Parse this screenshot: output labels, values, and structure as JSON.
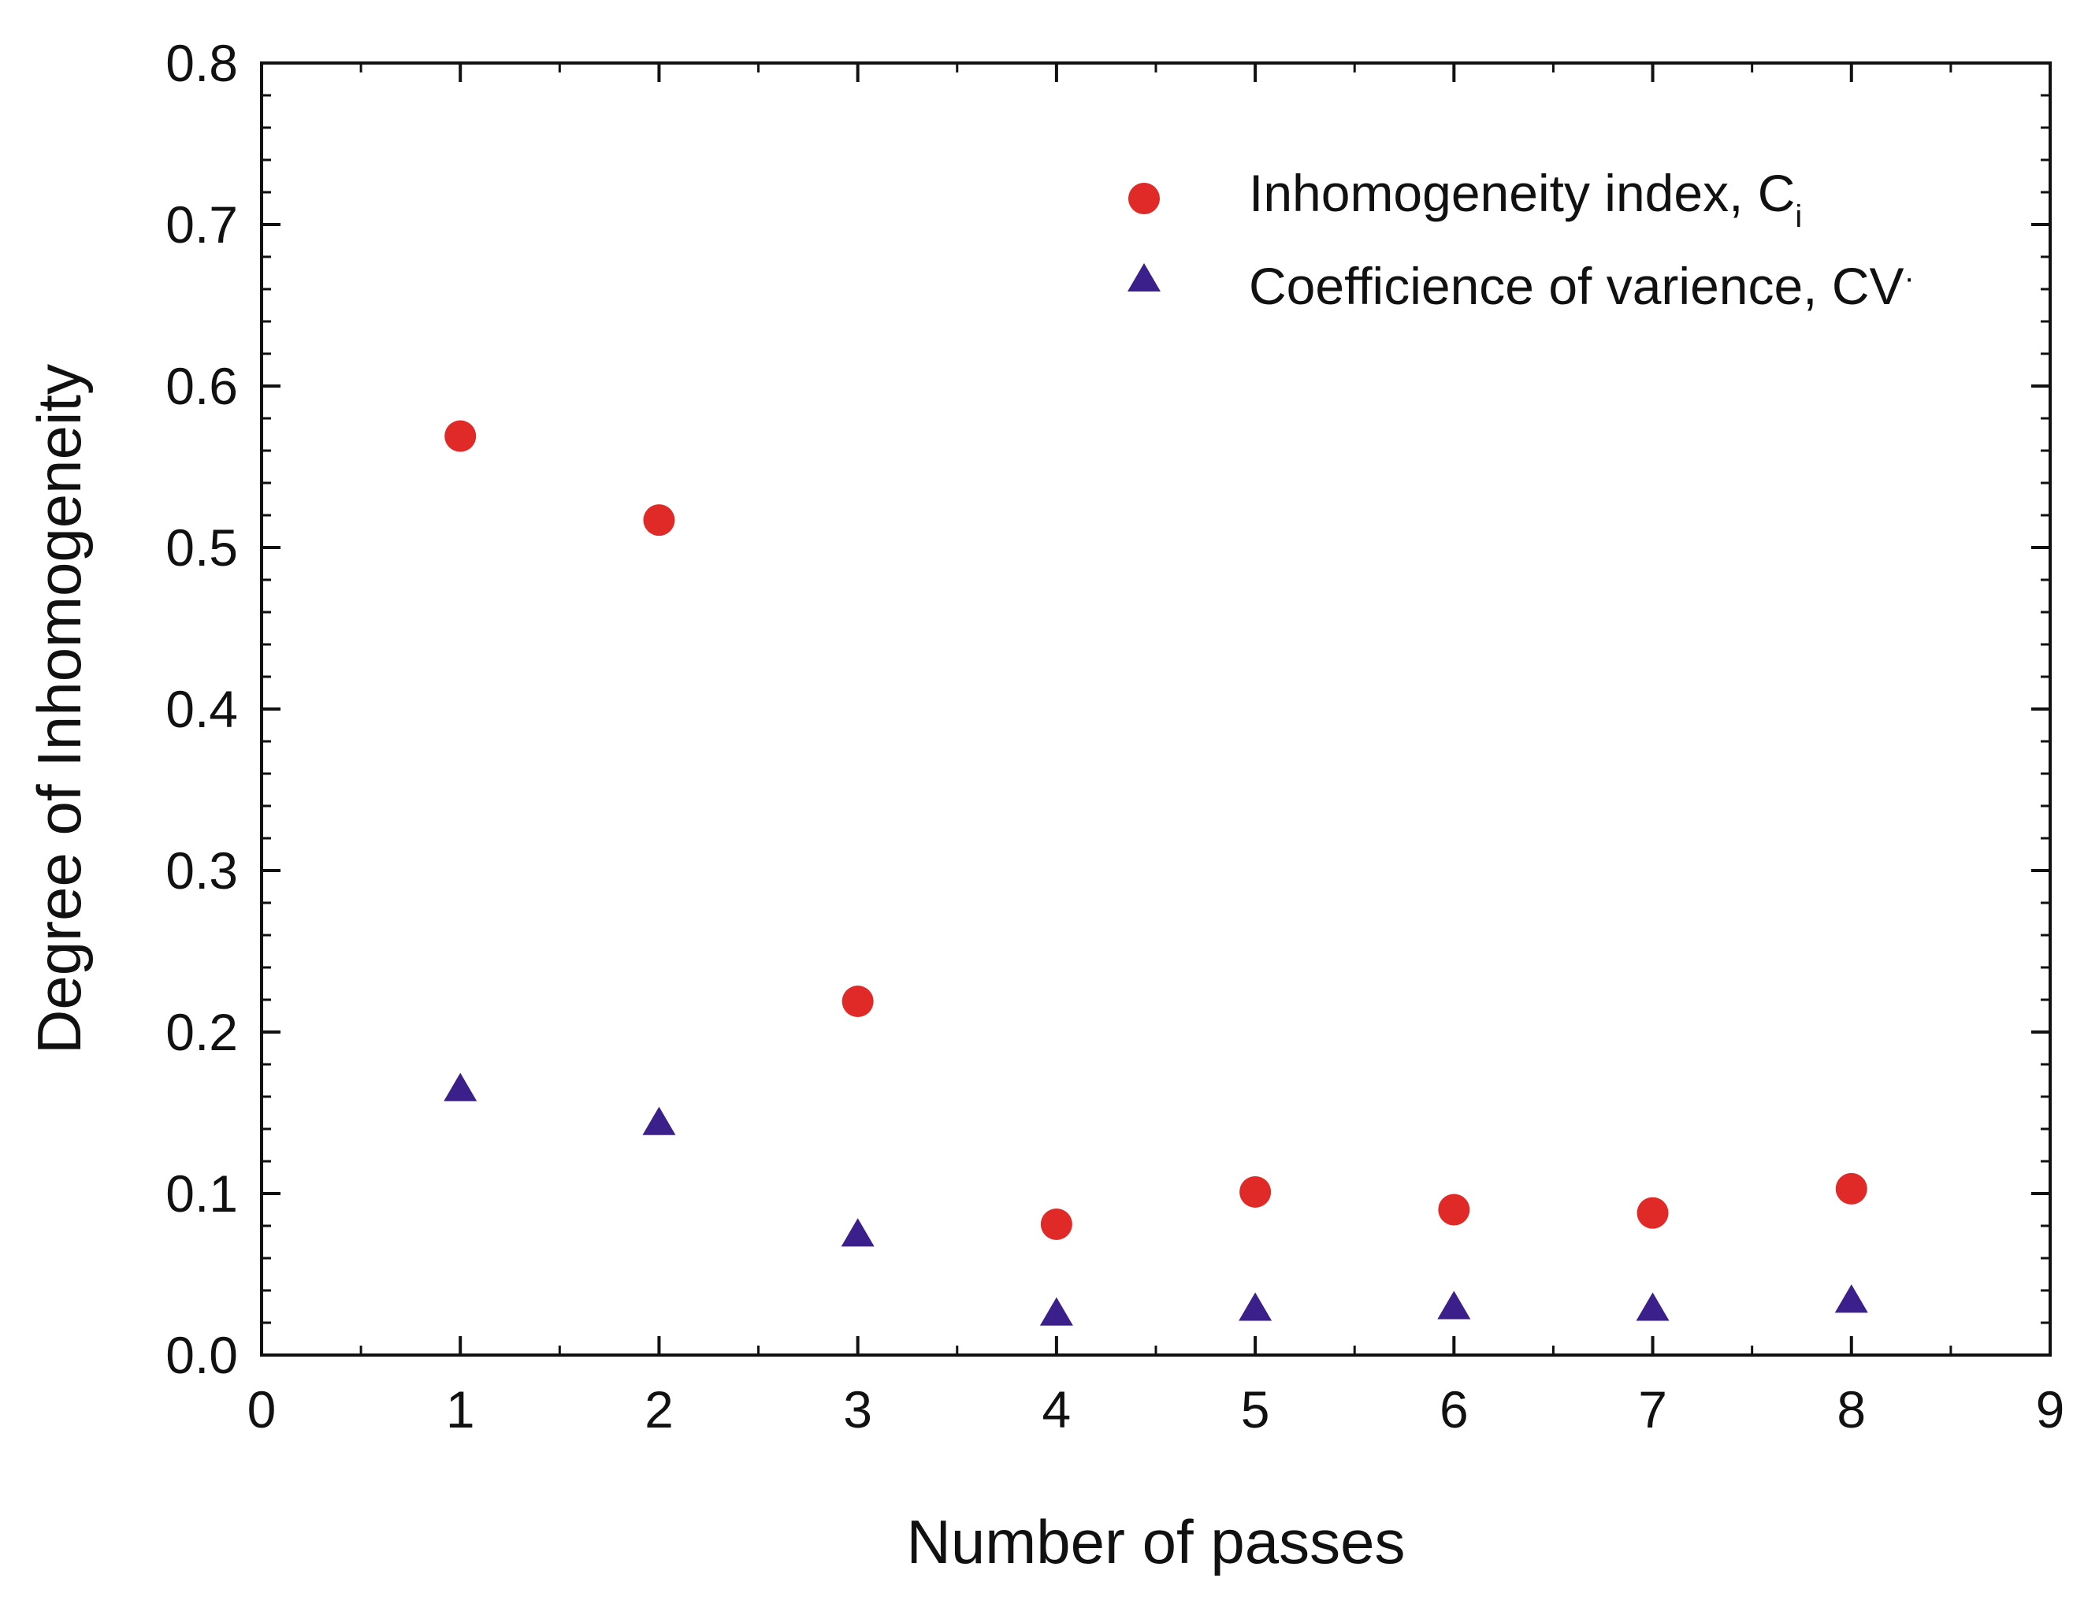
{
  "chart_data": {
    "type": "scatter",
    "xlabel": "Number of passes",
    "ylabel": "Degree of Inhomogeneity",
    "xlim": [
      0,
      9
    ],
    "ylim": [
      0,
      0.8
    ],
    "x_ticks": [
      "0",
      "1",
      "2",
      "3",
      "4",
      "5",
      "6",
      "7",
      "8",
      "9"
    ],
    "y_ticks": [
      "0.0",
      "0.1",
      "0.2",
      "0.3",
      "0.4",
      "0.5",
      "0.6",
      "0.7",
      "0.8"
    ],
    "legend_position": "top-right",
    "series": [
      {
        "name": "Inhomogeneity index, C",
        "name_subscript": "i",
        "marker": "circle",
        "color": "#e02a27",
        "x": [
          1,
          2,
          3,
          4,
          5,
          6,
          7,
          8
        ],
        "values": [
          0.569,
          0.517,
          0.219,
          0.081,
          0.101,
          0.09,
          0.088,
          0.103
        ]
      },
      {
        "name": "Coefficience of varience, CV",
        "name_suffix": "·",
        "marker": "triangle",
        "color": "#3b1f8a",
        "x": [
          1,
          2,
          3,
          4,
          5,
          6,
          7,
          8
        ],
        "values": [
          0.166,
          0.145,
          0.076,
          0.027,
          0.03,
          0.031,
          0.03,
          0.035
        ]
      }
    ]
  }
}
